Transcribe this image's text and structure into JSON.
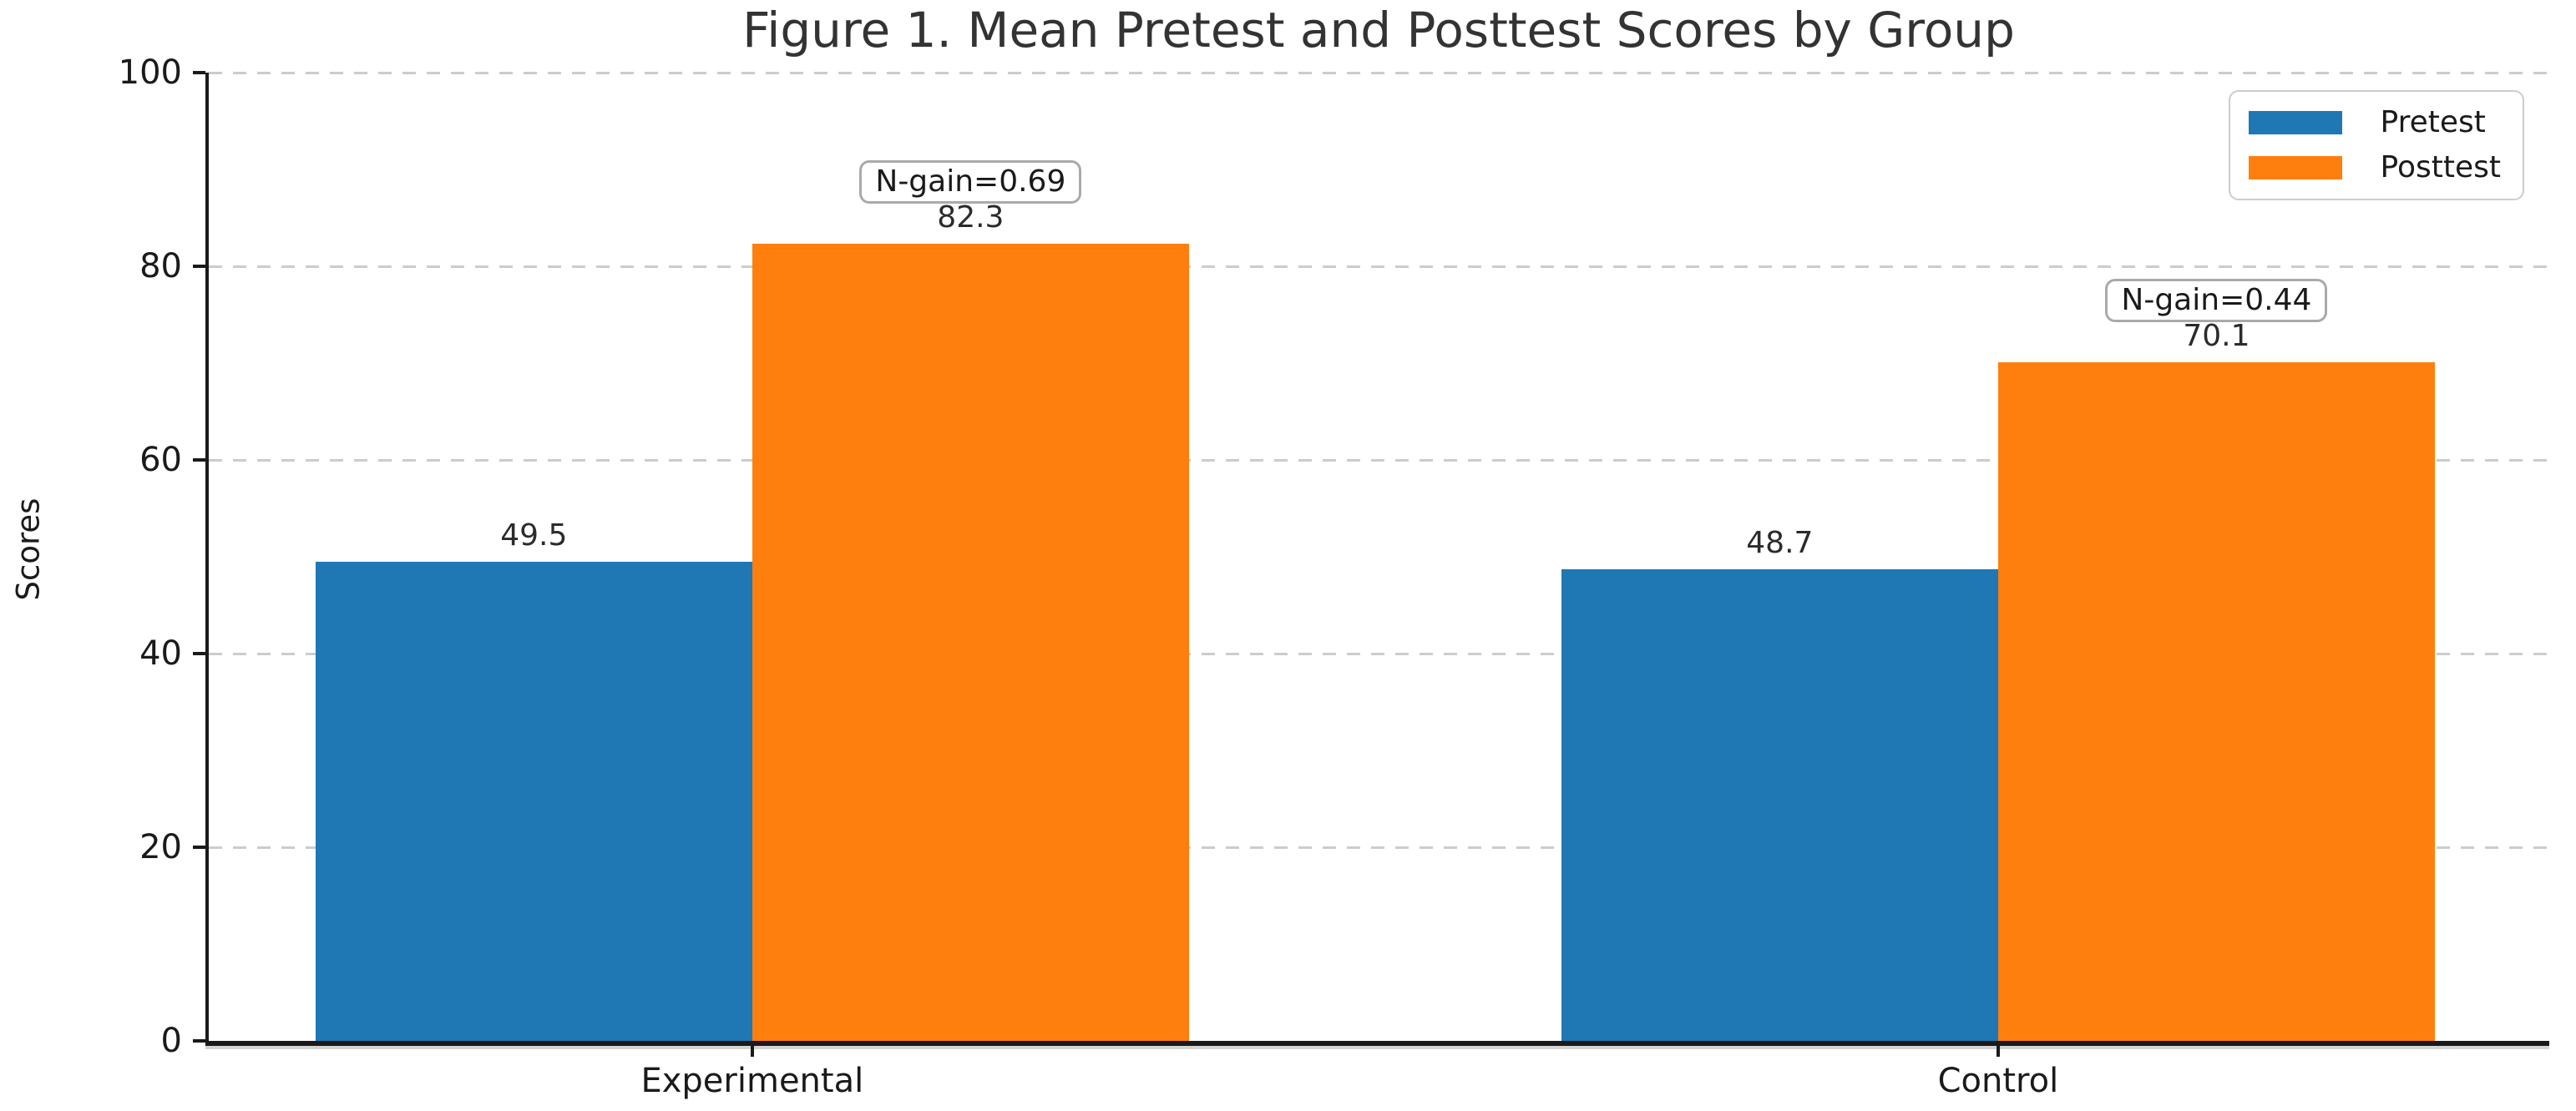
{
  "figure": {
    "title": "Figure 1. Mean Pretest and Posttest Scores by Group",
    "ylabel": "Scores"
  },
  "chart_data": {
    "type": "bar",
    "title": "Figure 1. Mean Pretest and Posttest Scores by Group",
    "xlabel": "",
    "ylabel": "Scores",
    "categories": [
      "Experimental",
      "Control"
    ],
    "series": [
      {
        "name": "Pretest",
        "color": "#1f77b4",
        "values": [
          49.5,
          48.7
        ]
      },
      {
        "name": "Posttest",
        "color": "#ff7f0e",
        "values": [
          82.3,
          70.1
        ]
      }
    ],
    "bar_value_labels": {
      "Pretest": [
        "49.5",
        "48.7"
      ],
      "Posttest": [
        "82.3",
        "70.1"
      ]
    },
    "annotations": [
      {
        "group": "Experimental",
        "text": "N-gain=0.69",
        "above_series": "Posttest"
      },
      {
        "group": "Control",
        "text": "N-gain=0.44",
        "above_series": "Posttest"
      }
    ],
    "ylim": [
      0,
      100
    ],
    "yticks": [
      0,
      20,
      40,
      60,
      80,
      100
    ],
    "grid": "horizontal dashed",
    "grid_color": "#cccccc",
    "axis_color": "#1a1a1a",
    "legend_position": "upper right",
    "legend_labels": [
      "Pretest",
      "Posttest"
    ]
  }
}
